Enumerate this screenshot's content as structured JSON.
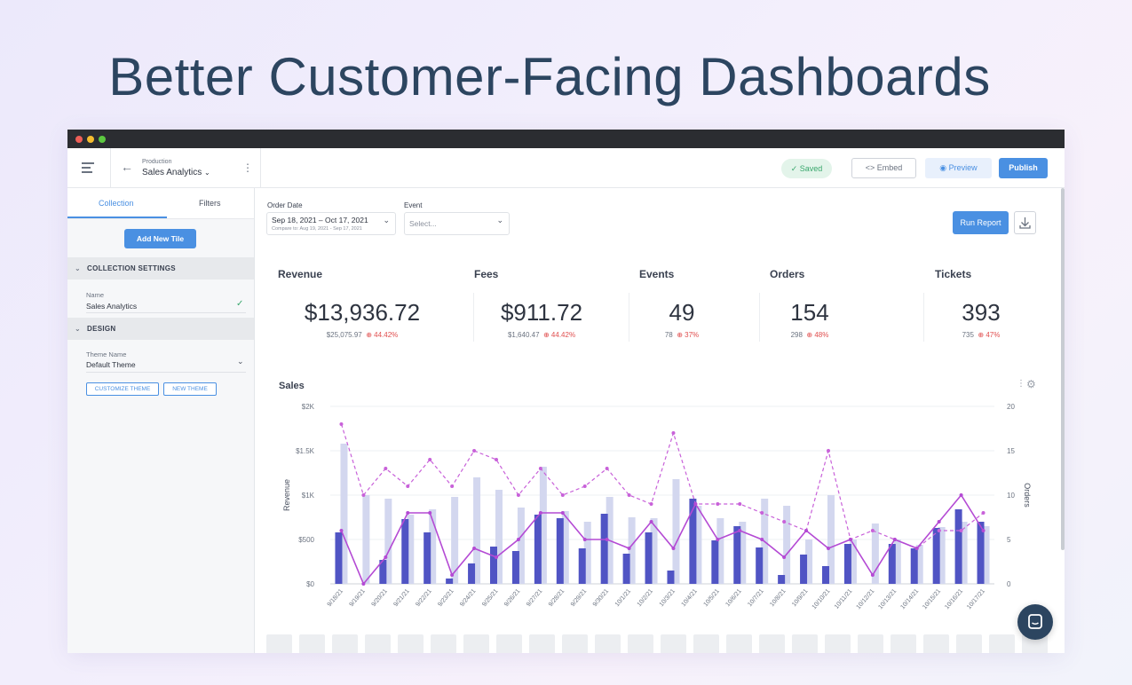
{
  "hero_title": "Better Customer-Facing Dashboards",
  "topbar": {
    "breadcrumb_parent": "Production",
    "dashboard_name": "Sales Analytics",
    "saved_label": "Saved",
    "embed_label": "Embed",
    "preview_label": "Preview",
    "publish_label": "Publish"
  },
  "sidebar": {
    "tabs": [
      "Collection",
      "Filters"
    ],
    "add_tile_label": "Add New Tile",
    "collection_settings_label": "COLLECTION SETTINGS",
    "name_label": "Name",
    "name_value": "Sales Analytics",
    "design_label": "DESIGN",
    "theme_label": "Theme Name",
    "theme_value": "Default Theme",
    "customize_theme_label": "CUSTOMIZE THEME",
    "new_theme_label": "NEW THEME"
  },
  "filters": {
    "order_date_label": "Order Date",
    "order_date_value": "Sep 18, 2021 – Oct 17, 2021",
    "compare_text": "Compare to: Aug 19, 2021 - Sep 17, 2021",
    "event_label": "Event",
    "event_placeholder": "Select...",
    "run_report_label": "Run Report"
  },
  "kpis": [
    {
      "title": "Revenue",
      "value": "$13,936.72",
      "previous": "$25,075.97",
      "change": "44.42%"
    },
    {
      "title": "Fees",
      "value": "$911.72",
      "previous": "$1,640.47",
      "change": "44.42%"
    },
    {
      "title": "Events",
      "value": "49",
      "previous": "78",
      "change": "37%"
    },
    {
      "title": "Orders",
      "value": "154",
      "previous": "298",
      "change": "48%"
    },
    {
      "title": "Tickets",
      "value": "393",
      "previous": "735",
      "change": "47%"
    }
  ],
  "chart_title": "Sales",
  "chart_data": {
    "type": "bar",
    "title": "Sales",
    "ylabel": "Revenue",
    "y2label": "Orders",
    "ylim": [
      0,
      2000
    ],
    "y2lim": [
      0,
      20
    ],
    "y_ticks": [
      "$0",
      "$500",
      "$1K",
      "$1.5K",
      "$2K"
    ],
    "y2_ticks": [
      "0",
      "5",
      "10",
      "15",
      "20"
    ],
    "categories": [
      "9/18/21",
      "9/19/21",
      "9/20/21",
      "9/21/21",
      "9/22/21",
      "9/23/21",
      "9/24/21",
      "9/25/21",
      "9/26/21",
      "9/27/21",
      "9/28/21",
      "9/29/21",
      "9/30/21",
      "10/1/21",
      "10/2/21",
      "10/3/21",
      "10/4/21",
      "10/5/21",
      "10/6/21",
      "10/7/21",
      "10/8/21",
      "10/9/21",
      "10/10/21",
      "10/11/21",
      "10/12/21",
      "10/13/21",
      "10/14/21",
      "10/15/21",
      "10/16/21",
      "10/17/21"
    ],
    "series": [
      {
        "name": "Revenue (previous)",
        "kind": "bar",
        "color": "#d3d7ef",
        "values": [
          1580,
          1000,
          960,
          780,
          840,
          980,
          1200,
          1060,
          860,
          1320,
          820,
          700,
          980,
          750,
          740,
          1180,
          880,
          740,
          700,
          960,
          880,
          500,
          1000,
          500,
          680,
          500,
          440,
          640,
          700,
          650
        ]
      },
      {
        "name": "Revenue",
        "kind": "bar",
        "color": "#5054c4",
        "values": [
          580,
          0,
          270,
          730,
          580,
          60,
          230,
          420,
          370,
          780,
          740,
          400,
          790,
          340,
          580,
          150,
          960,
          490,
          650,
          410,
          100,
          330,
          200,
          450,
          0,
          450,
          400,
          630,
          840,
          700
        ]
      },
      {
        "name": "Orders (previous)",
        "kind": "line-dashed",
        "color": "#c861d9",
        "values": [
          18,
          10,
          13,
          11,
          14,
          11,
          15,
          14,
          10,
          13,
          10,
          11,
          13,
          10,
          9,
          17,
          9,
          9,
          9,
          8,
          7,
          6,
          15,
          5,
          6,
          5,
          4,
          6,
          6,
          8
        ]
      },
      {
        "name": "Orders",
        "kind": "line",
        "color": "#b44ad4",
        "values": [
          6,
          0,
          3,
          8,
          8,
          1,
          4,
          3,
          5,
          8,
          8,
          5,
          5,
          4,
          7,
          4,
          9,
          5,
          6,
          5,
          3,
          6,
          4,
          5,
          1,
          5,
          4,
          7,
          10,
          6
        ]
      }
    ]
  },
  "colors": {
    "accent": "#4a90e2",
    "negative": "#e04e4e",
    "saved_green": "#3aa76d"
  }
}
